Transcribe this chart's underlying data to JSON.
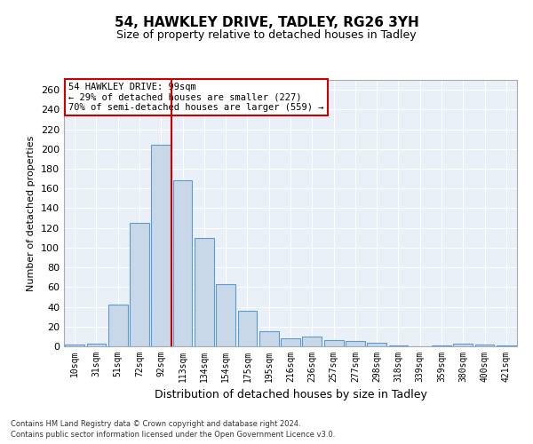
{
  "title1": "54, HAWKLEY DRIVE, TADLEY, RG26 3YH",
  "title2": "Size of property relative to detached houses in Tadley",
  "xlabel": "Distribution of detached houses by size in Tadley",
  "ylabel": "Number of detached properties",
  "bar_labels": [
    "10sqm",
    "31sqm",
    "51sqm",
    "72sqm",
    "92sqm",
    "113sqm",
    "134sqm",
    "154sqm",
    "175sqm",
    "195sqm",
    "216sqm",
    "236sqm",
    "257sqm",
    "277sqm",
    "298sqm",
    "318sqm",
    "339sqm",
    "359sqm",
    "380sqm",
    "400sqm",
    "421sqm"
  ],
  "bar_values": [
    2,
    3,
    42,
    125,
    204,
    168,
    110,
    63,
    36,
    15,
    8,
    10,
    6,
    5,
    4,
    1,
    0,
    1,
    3,
    2,
    1
  ],
  "bar_color": "#c8d8e8",
  "bar_edge_color": "#5b9bd5",
  "vline_x": 4.5,
  "vline_color": "#cc0000",
  "annotation_text": "54 HAWKLEY DRIVE: 99sqm\n← 29% of detached houses are smaller (227)\n70% of semi-detached houses are larger (559) →",
  "annotation_box_color": "#ffffff",
  "annotation_box_edge": "#cc0000",
  "ylim": [
    0,
    270
  ],
  "yticks": [
    0,
    20,
    40,
    60,
    80,
    100,
    120,
    140,
    160,
    180,
    200,
    220,
    240,
    260
  ],
  "background_color": "#eaf0f8",
  "grid_color": "#ffffff",
  "footnote1": "Contains HM Land Registry data © Crown copyright and database right 2024.",
  "footnote2": "Contains public sector information licensed under the Open Government Licence v3.0.",
  "title1_fontsize": 11,
  "title2_fontsize": 9,
  "ylabel_fontsize": 8,
  "xlabel_fontsize": 9,
  "tick_fontsize": 7,
  "annot_fontsize": 7.5
}
